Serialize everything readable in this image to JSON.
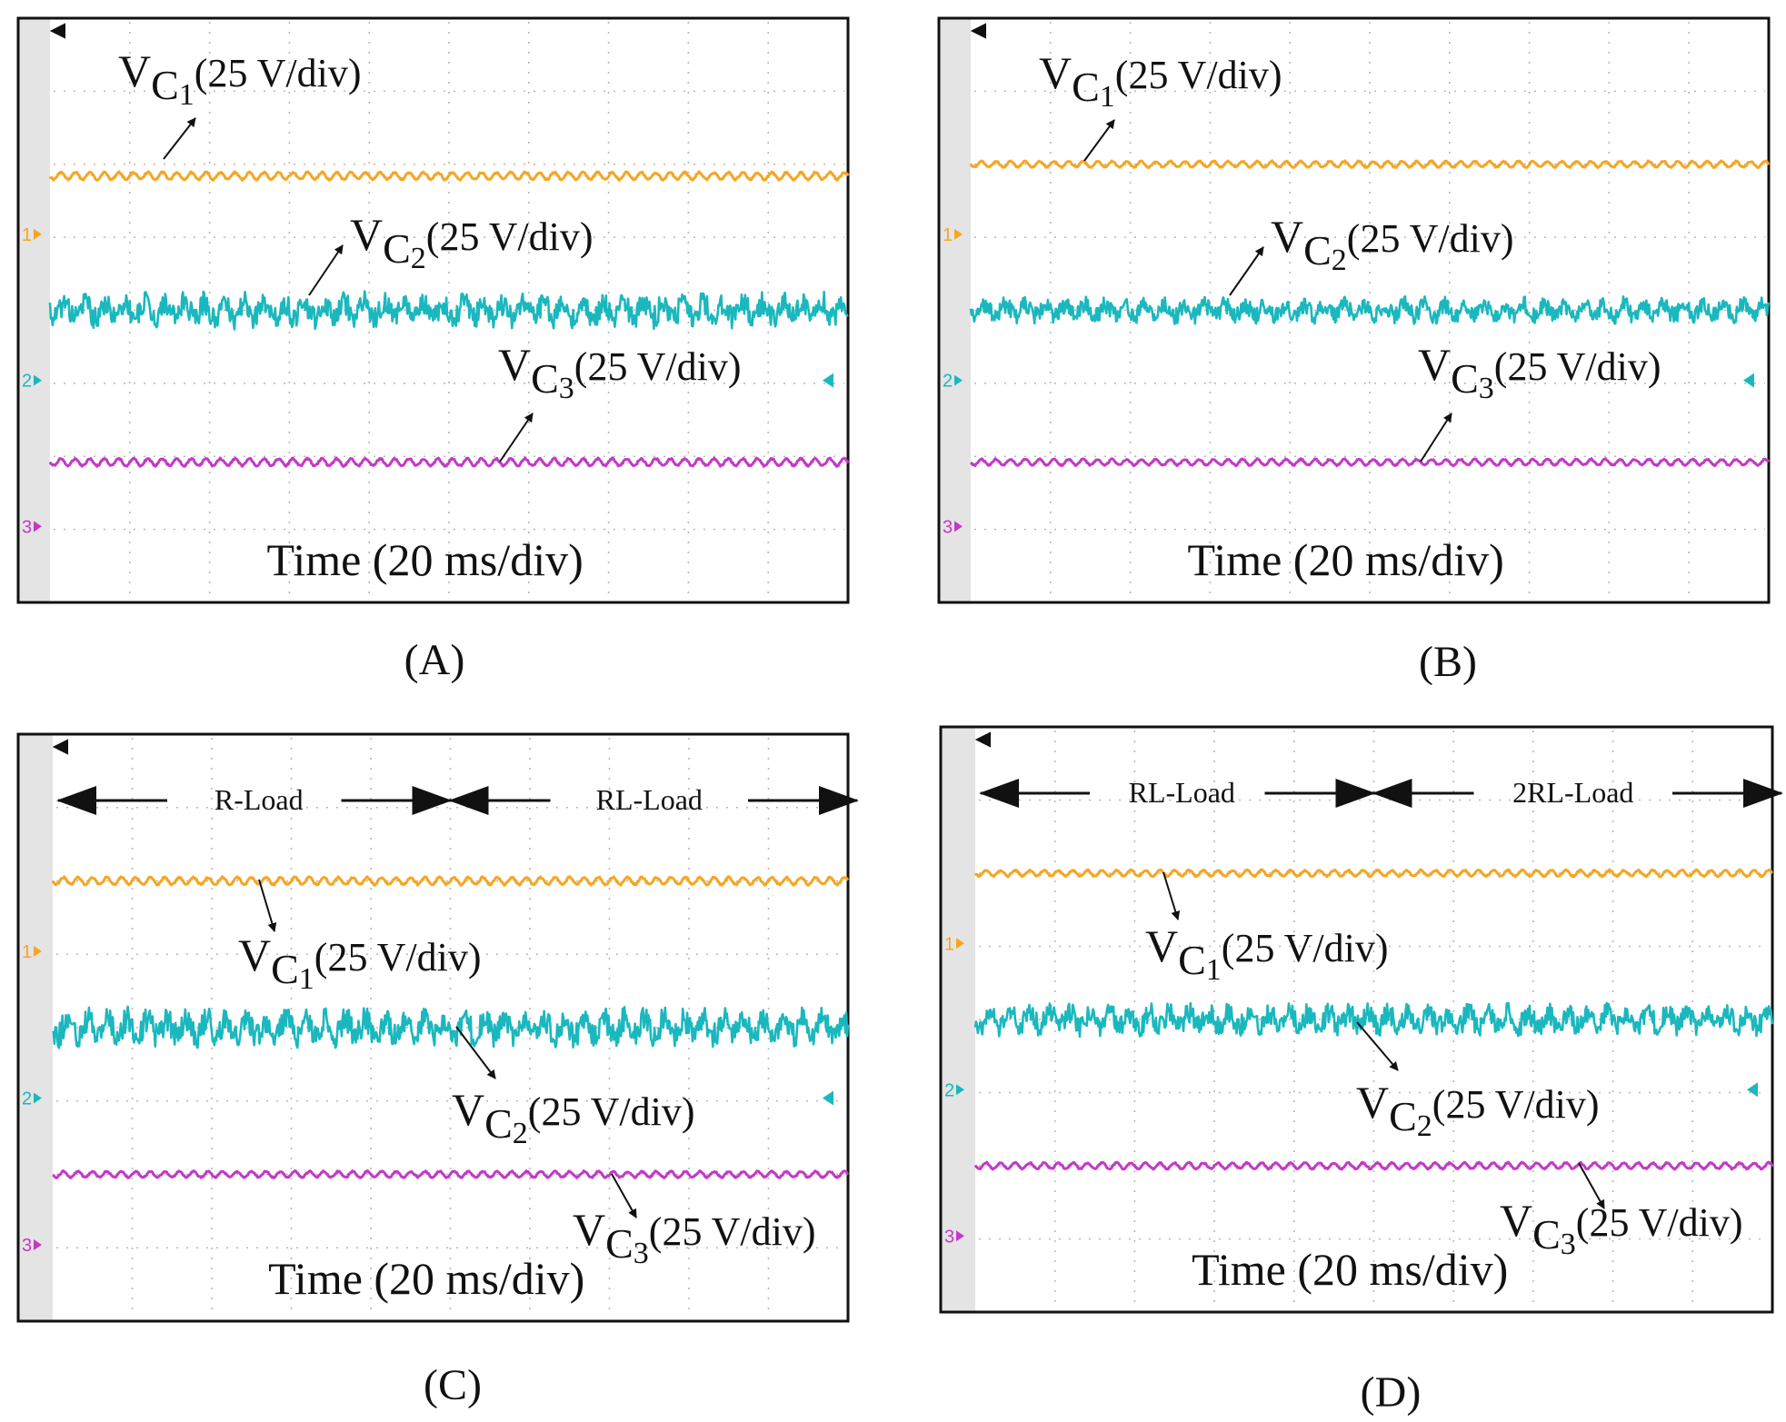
{
  "colors": {
    "vc1": "#f5a623",
    "vc2": "#1ab8be",
    "vc3": "#c23ac6",
    "grid": "#b8b8b8",
    "frame": "#111111"
  },
  "chart_data": [
    {
      "id": "A",
      "caption": "(A)",
      "type": "line",
      "time_label": "Time (20 ms/div)",
      "channel_markers": [
        "1",
        "2",
        "3"
      ],
      "load_regions": [],
      "series": [
        {
          "key": "vc1",
          "name_main": "V",
          "name_sub1": "C",
          "name_sub2": "1",
          "scale": "(25 V/div)",
          "level_div": 2.7,
          "ripple_div": 0.06,
          "kind": "sine"
        },
        {
          "key": "vc2",
          "name_main": "V",
          "name_sub1": "C",
          "name_sub2": "2",
          "scale": "(25 V/div)",
          "level_div": 5.0,
          "ripple_div": 0.22,
          "kind": "noise"
        },
        {
          "key": "vc3",
          "name_main": "V",
          "name_sub1": "C",
          "name_sub2": "3",
          "scale": "(25 V/div)",
          "level_div": 7.6,
          "ripple_div": 0.06,
          "kind": "sine"
        }
      ]
    },
    {
      "id": "B",
      "caption": "(B)",
      "type": "line",
      "time_label": "Time (20 ms/div)",
      "channel_markers": [
        "1",
        "2",
        "3"
      ],
      "load_regions": [],
      "series": [
        {
          "key": "vc1",
          "name_main": "V",
          "name_sub1": "C",
          "name_sub2": "1",
          "scale": "(25 V/div)",
          "level_div": 2.5,
          "ripple_div": 0.05,
          "kind": "sine"
        },
        {
          "key": "vc2",
          "name_main": "V",
          "name_sub1": "C",
          "name_sub2": "2",
          "scale": "(25 V/div)",
          "level_div": 5.0,
          "ripple_div": 0.16,
          "kind": "noise"
        },
        {
          "key": "vc3",
          "name_main": "V",
          "name_sub1": "C",
          "name_sub2": "3",
          "scale": "(25 V/div)",
          "level_div": 7.6,
          "ripple_div": 0.05,
          "kind": "sine"
        }
      ]
    },
    {
      "id": "C",
      "caption": "(C)",
      "type": "line",
      "time_label": "Time (20 ms/div)",
      "channel_markers": [
        "1",
        "2",
        "3"
      ],
      "load_regions": [
        "R-Load",
        "RL-Load"
      ],
      "series": [
        {
          "key": "vc1",
          "name_main": "V",
          "name_sub1": "C",
          "name_sub2": "1",
          "scale": "(25 V/div)",
          "level_div": 2.5,
          "ripple_div": 0.06,
          "kind": "sine"
        },
        {
          "key": "vc2",
          "name_main": "V",
          "name_sub1": "C",
          "name_sub2": "2",
          "scale": "(25 V/div)",
          "level_div": 5.0,
          "ripple_div": 0.24,
          "kind": "noise"
        },
        {
          "key": "vc3",
          "name_main": "V",
          "name_sub1": "C",
          "name_sub2": "3",
          "scale": "(25 V/div)",
          "level_div": 7.5,
          "ripple_div": 0.05,
          "kind": "sine"
        }
      ]
    },
    {
      "id": "D",
      "caption": "(D)",
      "type": "line",
      "time_label": "Time (20 ms/div)",
      "channel_markers": [
        "1",
        "2",
        "3"
      ],
      "load_regions": [
        "RL-Load",
        "2RL-Load"
      ],
      "series": [
        {
          "key": "vc1",
          "name_main": "V",
          "name_sub1": "C",
          "name_sub2": "1",
          "scale": "(25 V/div)",
          "level_div": 2.5,
          "ripple_div": 0.05,
          "kind": "sine"
        },
        {
          "key": "vc2",
          "name_main": "V",
          "name_sub1": "C",
          "name_sub2": "2",
          "scale": "(25 V/div)",
          "level_div": 5.0,
          "ripple_div": 0.2,
          "kind": "noise"
        },
        {
          "key": "vc3",
          "name_main": "V",
          "name_sub1": "C",
          "name_sub2": "3",
          "scale": "(25 V/div)",
          "level_div": 7.5,
          "ripple_div": 0.05,
          "kind": "sine"
        }
      ]
    }
  ]
}
